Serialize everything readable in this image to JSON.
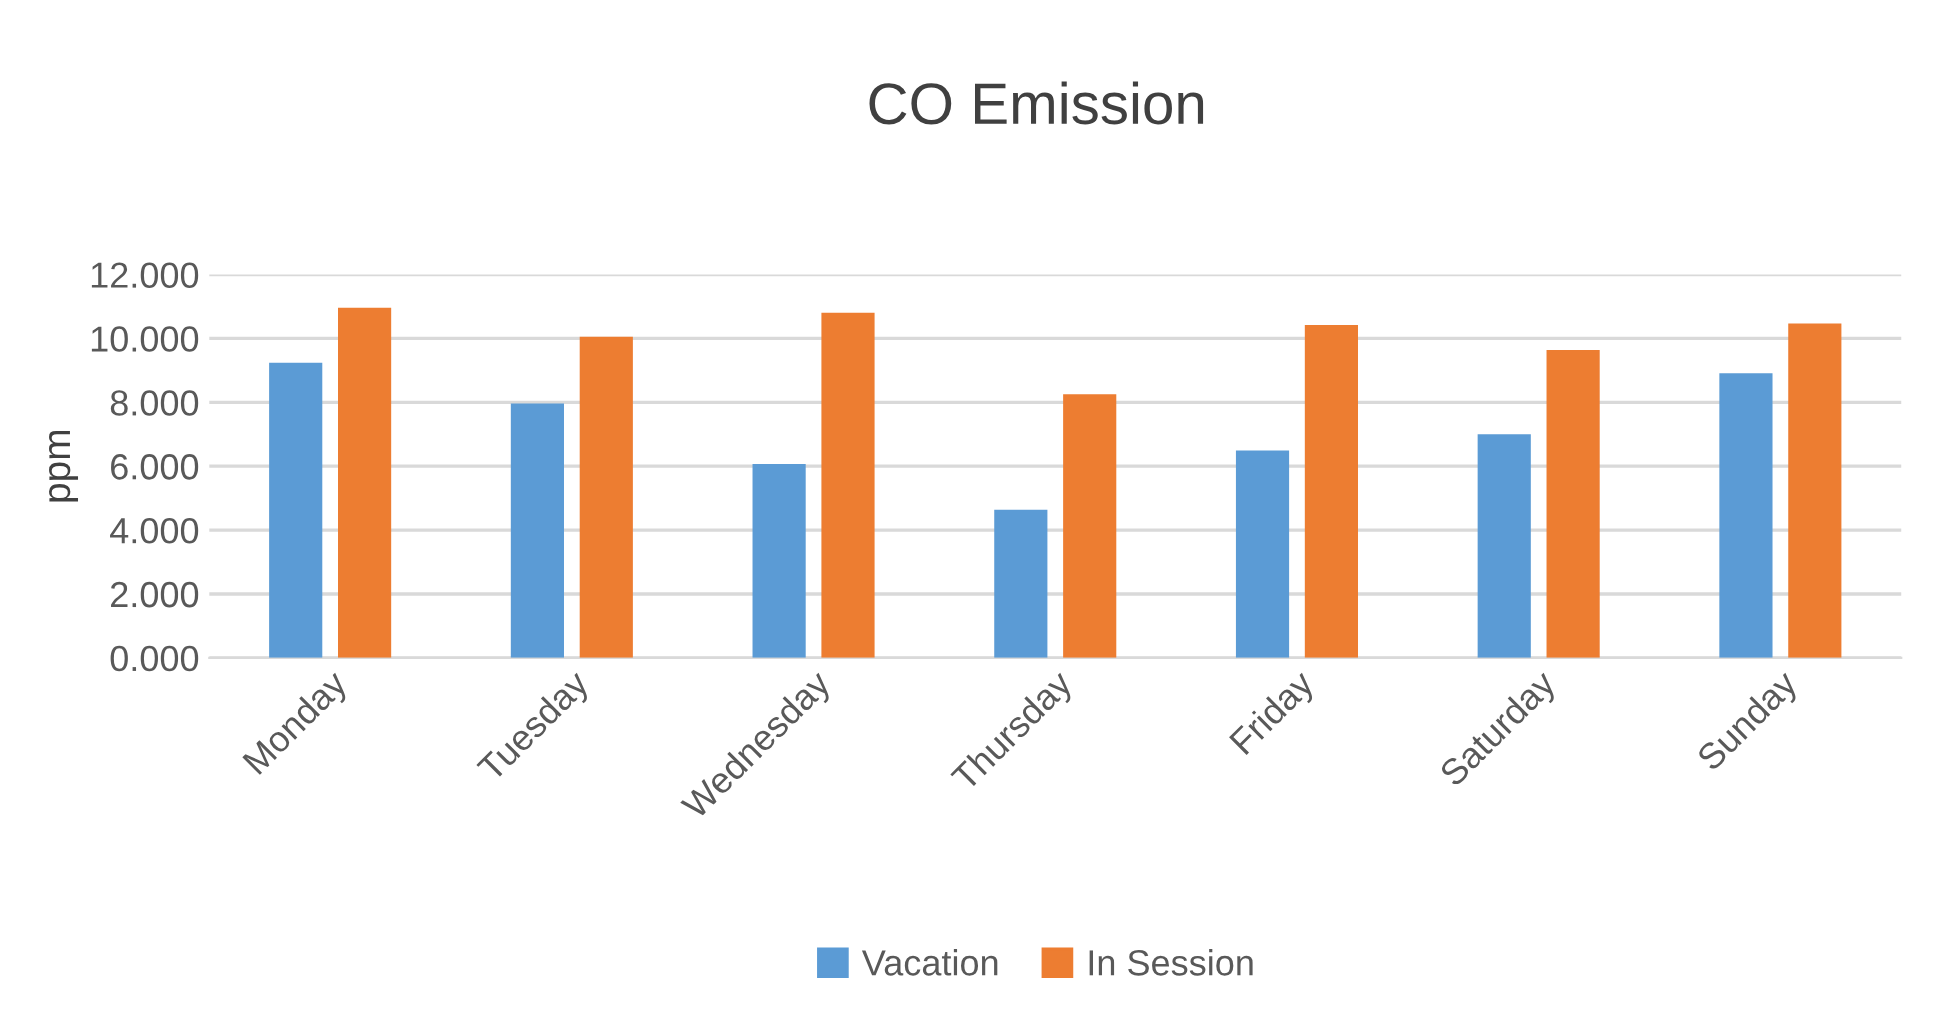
{
  "chart_data": {
    "type": "bar",
    "title": "CO Emission",
    "ylabel": "ppm",
    "categories": [
      "Monday",
      "Tuesday",
      "Wednesday",
      "Thursday",
      "Friday",
      "Saturday",
      "Sunday"
    ],
    "series": [
      {
        "name": "Vacation",
        "color": "#5b9bd5",
        "values": [
          9.24,
          7.96,
          6.07,
          4.64,
          6.49,
          7.0,
          8.91
        ]
      },
      {
        "name": "In Session",
        "color": "#ed7d31",
        "values": [
          10.96,
          10.05,
          10.8,
          8.25,
          10.42,
          9.64,
          10.47
        ]
      }
    ],
    "ylim": [
      0,
      12
    ],
    "yticks": [
      {
        "value": 0,
        "label": "0.000"
      },
      {
        "value": 2,
        "label": "2.000"
      },
      {
        "value": 4,
        "label": "4.000"
      },
      {
        "value": 6,
        "label": "6.000"
      },
      {
        "value": 8,
        "label": "8.000"
      },
      {
        "value": 10,
        "label": "10.000"
      },
      {
        "value": 12,
        "label": "12.000"
      }
    ],
    "grid": "y",
    "legend": "bottom"
  }
}
